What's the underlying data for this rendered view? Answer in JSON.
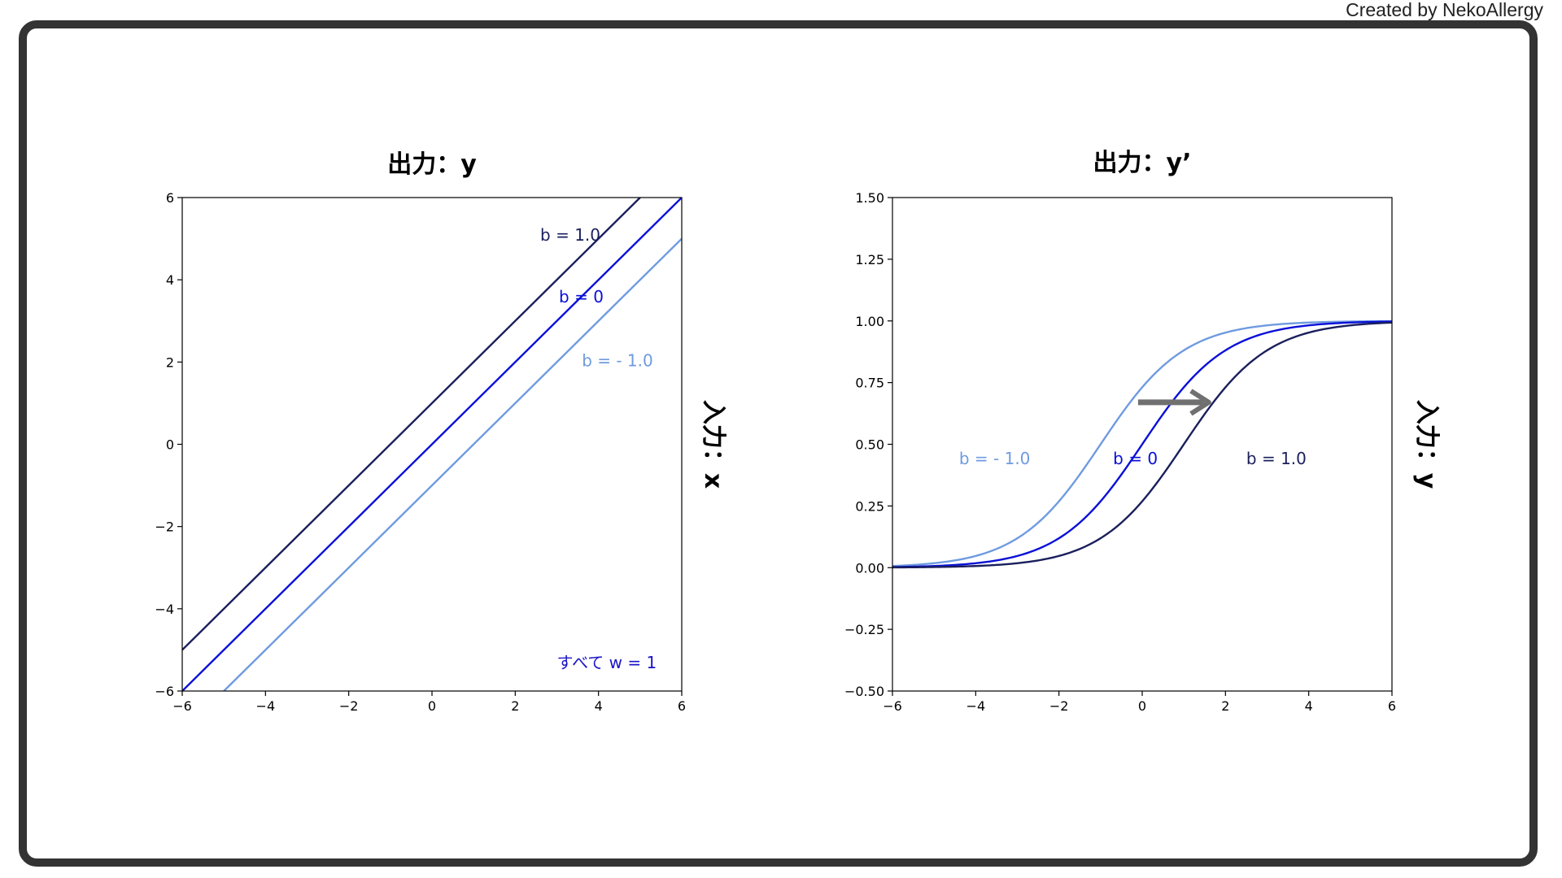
{
  "credit": "Created by NekoAllergy",
  "colors": {
    "b_pos": "#1a1f5c",
    "b_zero": "#0a10d8",
    "b_neg": "#6f9be0",
    "note": "#1a14c8",
    "arrow": "#707070"
  },
  "chart_data": [
    {
      "type": "line",
      "title": "出力：y",
      "ylabel": "入力：x",
      "xlim": [
        -6,
        6
      ],
      "ylim": [
        -6,
        6
      ],
      "xticks": [
        -6,
        -4,
        -2,
        0,
        2,
        4,
        6
      ],
      "yticks": [
        -6,
        -4,
        -2,
        0,
        2,
        4,
        6
      ],
      "xtick_labels": [
        "−6",
        "−4",
        "−2",
        "0",
        "2",
        "4",
        "6"
      ],
      "ytick_labels": [
        "−6",
        "−4",
        "−2",
        "0",
        "2",
        "4",
        "6"
      ],
      "series": [
        {
          "name": "b = 1.0",
          "w": 1,
          "b": 1.0,
          "color": "#1a1f5c",
          "x": [
            -6,
            5
          ],
          "y": [
            -5,
            6
          ]
        },
        {
          "name": "b = 0",
          "w": 1,
          "b": 0,
          "color": "#0a10d8",
          "x": [
            -6,
            6
          ],
          "y": [
            -6,
            6
          ]
        },
        {
          "name": "b = - 1.0",
          "w": 1,
          "b": -1.0,
          "color": "#6f9be0",
          "x": [
            -5,
            6
          ],
          "y": [
            -6,
            5
          ]
        }
      ],
      "annotations": [
        {
          "text": "b = 1.0",
          "x": 2.6,
          "y": 4.95,
          "color": "#1a1f5c"
        },
        {
          "text": "b = 0",
          "x": 3.05,
          "y": 3.45,
          "color": "#0a10d8"
        },
        {
          "text": "b = - 1.0",
          "x": 3.6,
          "y": 1.9,
          "color": "#6f9be0"
        },
        {
          "text": "すべて w = 1",
          "x": 3.0,
          "y": -5.45,
          "color": "#1a14c8"
        }
      ]
    },
    {
      "type": "line",
      "title": "出力：y’",
      "ylabel": "入力：y",
      "xlim": [
        -6,
        6
      ],
      "ylim": [
        -0.5,
        1.5
      ],
      "xticks": [
        -6,
        -4,
        -2,
        0,
        2,
        4,
        6
      ],
      "yticks": [
        -0.5,
        -0.25,
        0,
        0.25,
        0.5,
        0.75,
        1.0,
        1.25,
        1.5
      ],
      "xtick_labels": [
        "−6",
        "−4",
        "−2",
        "0",
        "2",
        "4",
        "6"
      ],
      "ytick_labels": [
        "−0.50",
        "−0.25",
        "0.00",
        "0.25",
        "0.50",
        "0.75",
        "1.00",
        "1.25",
        "1.50"
      ],
      "series": [
        {
          "name": "b = - 1.0",
          "function": "sigmoid",
          "shift": -1.0,
          "color": "#6f9be0"
        },
        {
          "name": "b = 0",
          "function": "sigmoid",
          "shift": 0,
          "color": "#0a10d8"
        },
        {
          "name": "b = 1.0",
          "function": "sigmoid",
          "shift": 1.0,
          "color": "#1a1f5c"
        }
      ],
      "annotations": [
        {
          "text": "b = - 1.0",
          "x": -4.4,
          "y": 0.42,
          "color": "#6f9be0"
        },
        {
          "text": "b = 0",
          "x": -0.7,
          "y": 0.42,
          "color": "#0a10d8"
        },
        {
          "text": "b = 1.0",
          "x": 2.5,
          "y": 0.42,
          "color": "#1a1f5c"
        }
      ],
      "arrow": {
        "from": [
          -0.1,
          0.67
        ],
        "to": [
          1.6,
          0.67
        ],
        "color": "#707070"
      }
    }
  ]
}
